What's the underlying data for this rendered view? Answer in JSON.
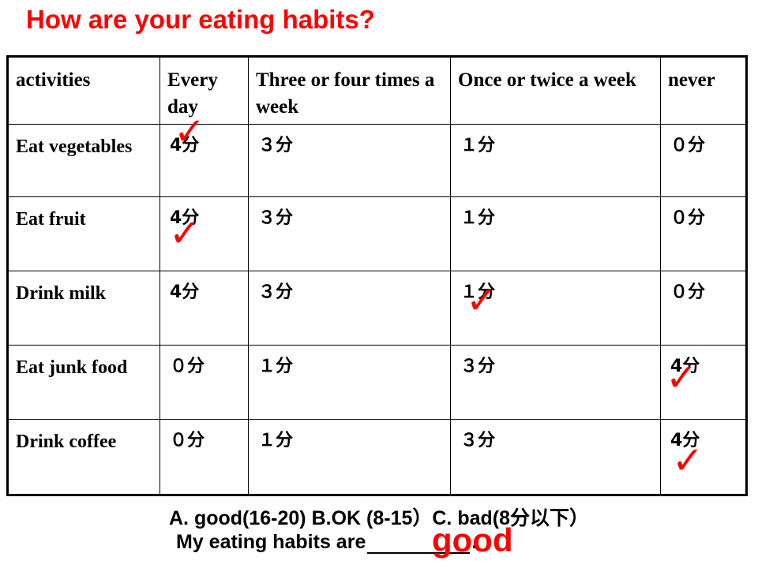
{
  "title": "How are your eating habits?",
  "chart_data": {
    "type": "table",
    "columns": [
      "activities",
      "Every day",
      "Three or four times a week",
      "Once or twice a week",
      "never"
    ],
    "rows": [
      {
        "activity": "Eat vegetables",
        "scores": [
          "4分",
          "３分",
          "１分",
          "０分"
        ],
        "checked_column": "Every day"
      },
      {
        "activity": "Eat fruit",
        "scores": [
          "4分",
          "３分",
          "１分",
          "０分"
        ],
        "checked_column": "Every day"
      },
      {
        "activity": "Drink milk",
        "scores": [
          "4分",
          "３分",
          "１分",
          "０分"
        ],
        "checked_column": "Once or twice a week"
      },
      {
        "activity": "Eat junk food",
        "scores": [
          "０分",
          "１分",
          "３分",
          "4分"
        ],
        "checked_column": "never"
      },
      {
        "activity": "Drink coffee",
        "scores": [
          "０分",
          "１分",
          "３分",
          "4分"
        ],
        "checked_column": "never"
      }
    ]
  },
  "checkmark_glyph": "✓",
  "checkmark_color": "#ff0000",
  "title_color": "#ff0000",
  "footer": {
    "options": "A. good(16-20) B.OK (8-15）C. bad(8分以下）",
    "sentence_prefix": "My eating habits are",
    "sentence_suffix": ".",
    "answer": "good",
    "answer_color": "#ff0000"
  }
}
